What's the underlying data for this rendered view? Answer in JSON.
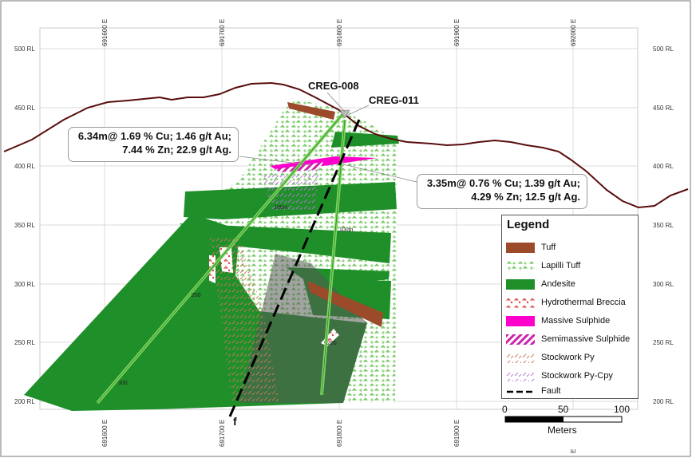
{
  "section": {
    "easting_ticks": [
      "691600 E",
      "691700 E",
      "691800 E",
      "691900 E",
      "692000 E"
    ],
    "rl_ticks_left": [
      "500 RL",
      "450 RL",
      "400 RL",
      "350 RL",
      "300 RL",
      "250 RL",
      "200 RL"
    ],
    "rl_ticks_right": [
      "500 RL",
      "450 RL",
      "400 RL",
      "350 RL",
      "300 RL",
      "250 RL",
      "200 RL"
    ],
    "fault_label": "f",
    "bottom_edge_label": "E"
  },
  "drillholes": [
    {
      "id": "CREG-008"
    },
    {
      "id": "CREG-011"
    }
  ],
  "depth_marks": [
    "100m",
    "200",
    "300",
    "100m",
    "200"
  ],
  "callouts": [
    {
      "line1": "6.34m@ 1.69 % Cu; 1.46 g/t Au;",
      "line2": "7.44 % Zn; 22.9 g/t Ag."
    },
    {
      "line1": "3.35m@ 0.76 % Cu; 1.39 g/t Au;",
      "line2": "4.29 % Zn; 12.5 g/t Ag."
    }
  ],
  "legend": {
    "title": "Legend",
    "items": [
      {
        "label": "Tuff",
        "color": "#9b4a2a",
        "pattern": "solid"
      },
      {
        "label": "Lapilli Tuff",
        "color": "#7ccc5a",
        "pattern": "lapilli"
      },
      {
        "label": "Andesite",
        "color": "#1f8f2a",
        "pattern": "solid"
      },
      {
        "label": "Hydrothermal Breccia",
        "color": "#d94040",
        "pattern": "breccia"
      },
      {
        "label": "Massive Sulphide",
        "color": "#ff00cc",
        "pattern": "solid"
      },
      {
        "label": "Semimassive Sulphide",
        "color": "#cc22aa",
        "pattern": "hatch"
      },
      {
        "label": "Stockwork Py",
        "color": "#c8785a",
        "pattern": "stockwork"
      },
      {
        "label": "Stockwork Py-Cpy",
        "color": "#b07ad0",
        "pattern": "stockwork2"
      },
      {
        "label": "Fault",
        "color": "#000000",
        "pattern": "dash"
      }
    ]
  },
  "scale_bar": {
    "ticks": [
      "0",
      "50",
      "100"
    ],
    "unit": "Meters"
  }
}
